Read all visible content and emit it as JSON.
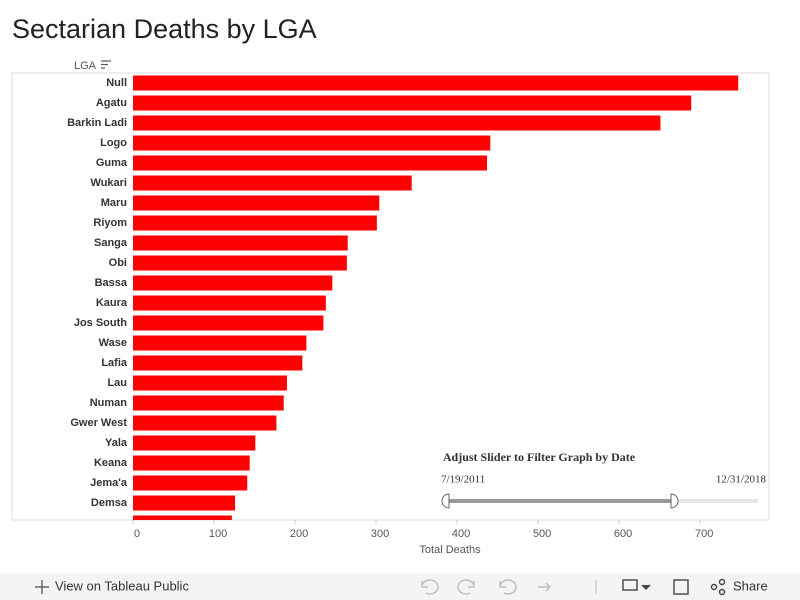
{
  "chart_data": {
    "type": "bar",
    "orientation": "horizontal",
    "title": "Sectarian Deaths by LGA",
    "category_header": "LGA",
    "x_label": "Total Deaths",
    "categories": [
      "Null",
      "Agatu",
      "Barkin Ladi",
      "Logo",
      "Guma",
      "Wukari",
      "Maru",
      "Riyom",
      "Sanga",
      "Obi",
      "Bassa",
      "Kaura",
      "Jos South",
      "Wase",
      "Lafia",
      "Lau",
      "Numan",
      "Gwer West",
      "Yala",
      "Keana",
      "Jema'a",
      "Demsa",
      null
    ],
    "values": [
      747,
      689,
      651,
      441,
      437,
      344,
      304,
      301,
      265,
      264,
      246,
      238,
      235,
      214,
      209,
      190,
      186,
      177,
      151,
      144,
      141,
      126,
      122
    ],
    "color": "#ff0000",
    "xlim": [
      0,
      785
    ],
    "xticks": [
      0,
      100,
      200,
      300,
      400,
      500,
      600,
      700
    ],
    "grid": false
  },
  "slider": {
    "title": "Adjust Slider to Filter Graph by Date",
    "start": "7/19/2011",
    "end": "12/31/2018"
  },
  "toolbar": {
    "view": "View on Tableau Public",
    "share": "Share"
  }
}
